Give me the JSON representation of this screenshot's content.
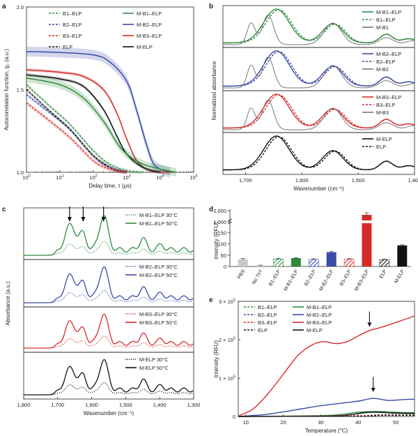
{
  "colors": {
    "green": "#2e8b3e",
    "blue": "#3a4aa8",
    "red": "#d62a2a",
    "black": "#111111",
    "grey": "#777777",
    "lightgrey": "#c8c8c8"
  },
  "chart_data": [
    {
      "panel": "a",
      "type": "line",
      "title": "",
      "xlabel": "Delay time, τ (μs)",
      "ylabel": "Autocorrelation function, g₂ (a.u.)",
      "x_scale": "log",
      "xlim": [
        1,
        100000
      ],
      "ylim": [
        1.0,
        2.0
      ],
      "x_ticks": [
        "10^0",
        "10^1",
        "10^2",
        "10^3",
        "10^4",
        "10^5"
      ],
      "y_ticks": [
        "1.0",
        "1.5",
        "2.0"
      ],
      "legend": [
        {
          "name": "B1–ELP",
          "style": "dashed",
          "color": "green"
        },
        {
          "name": "M-B1–ELP",
          "style": "solid",
          "color": "green"
        },
        {
          "name": "B2–ELP",
          "style": "dashed",
          "color": "blue"
        },
        {
          "name": "M-B2–ELP",
          "style": "solid",
          "color": "blue"
        },
        {
          "name": "B3–ELP",
          "style": "dashed",
          "color": "red"
        },
        {
          "name": "M-B3–ELP",
          "style": "solid",
          "color": "red"
        },
        {
          "name": "ELP",
          "style": "dashed",
          "color": "black"
        },
        {
          "name": "M-ELP",
          "style": "solid",
          "color": "black"
        }
      ],
      "series": [
        {
          "name": "M-B2–ELP",
          "color": "blue",
          "style": "solid",
          "band": 0.03,
          "points": [
            [
              1,
              1.73
            ],
            [
              10,
              1.725
            ],
            [
              100,
              1.71
            ],
            [
              300,
              1.67
            ],
            [
              1000,
              1.55
            ],
            [
              2000,
              1.37
            ],
            [
              4000,
              1.16
            ],
            [
              7000,
              1.04
            ],
            [
              20000,
              1.0
            ]
          ]
        },
        {
          "name": "M-B3–ELP",
          "color": "red",
          "style": "solid",
          "band": 0.01,
          "points": [
            [
              1,
              1.62
            ],
            [
              10,
              1.605
            ],
            [
              50,
              1.58
            ],
            [
              200,
              1.5
            ],
            [
              500,
              1.36
            ],
            [
              1000,
              1.2
            ],
            [
              2000,
              1.07
            ],
            [
              5000,
              1.01
            ],
            [
              20000,
              1.0
            ]
          ]
        },
        {
          "name": "M-ELP",
          "color": "black",
          "style": "solid",
          "band": 0.01,
          "points": [
            [
              1,
              1.59
            ],
            [
              10,
              1.565
            ],
            [
              50,
              1.52
            ],
            [
              200,
              1.38
            ],
            [
              500,
              1.22
            ],
            [
              1000,
              1.11
            ],
            [
              3000,
              1.03
            ],
            [
              10000,
              1.0
            ]
          ]
        },
        {
          "name": "M-B1–ELP",
          "color": "green",
          "style": "solid",
          "band": 0.025,
          "points": [
            [
              1,
              1.57
            ],
            [
              10,
              1.53
            ],
            [
              50,
              1.45
            ],
            [
              200,
              1.31
            ],
            [
              500,
              1.18
            ],
            [
              1000,
              1.11
            ],
            [
              3000,
              1.05
            ],
            [
              10000,
              1.02
            ],
            [
              30000,
              1.0
            ]
          ]
        },
        {
          "name": "B1–ELP",
          "color": "green",
          "style": "dashed",
          "band": 0.01,
          "points": [
            [
              1,
              1.53
            ],
            [
              5,
              1.4
            ],
            [
              20,
              1.29
            ],
            [
              100,
              1.13
            ],
            [
              300,
              1.05
            ],
            [
              1000,
              1.01
            ],
            [
              3000,
              1.0
            ]
          ]
        },
        {
          "name": "B2–ELP",
          "color": "blue",
          "style": "dashed",
          "band": 0.01,
          "points": [
            [
              1,
              1.47
            ],
            [
              5,
              1.36
            ],
            [
              20,
              1.26
            ],
            [
              100,
              1.1
            ],
            [
              300,
              1.03
            ],
            [
              1000,
              1.0
            ]
          ]
        },
        {
          "name": "ELP",
          "color": "black",
          "style": "dashed",
          "band": 0.01,
          "points": [
            [
              1,
              1.5
            ],
            [
              5,
              1.37
            ],
            [
              20,
              1.26
            ],
            [
              100,
              1.1
            ],
            [
              400,
              1.02
            ],
            [
              1000,
              1.0
            ]
          ]
        },
        {
          "name": "B3–ELP",
          "color": "red",
          "style": "dashed",
          "band": 0.012,
          "points": [
            [
              1,
              1.42
            ],
            [
              5,
              1.31
            ],
            [
              20,
              1.21
            ],
            [
              100,
              1.07
            ],
            [
              300,
              1.02
            ],
            [
              1000,
              1.0
            ]
          ]
        }
      ]
    },
    {
      "panel": "b",
      "type": "line",
      "title": "",
      "xlabel": "Wavenumber (cm⁻¹)",
      "ylabel": "Normalized absorbance",
      "xlim": [
        1740,
        1400
      ],
      "x_ticks": [
        "1,700",
        "1,600",
        "1,500",
        "1,400"
      ],
      "subpanels": [
        {
          "legend": [
            "M-B1–ELP",
            "B1–ELP",
            "M-B1"
          ],
          "colors": [
            "green",
            "green",
            "grey"
          ],
          "styles": [
            "solid",
            "dashed",
            "solid"
          ]
        },
        {
          "legend": [
            "M-B2–ELP",
            "B2–ELP",
            "M-B2"
          ],
          "colors": [
            "blue",
            "blue",
            "grey"
          ],
          "styles": [
            "solid",
            "dashed",
            "solid"
          ]
        },
        {
          "legend": [
            "M-B3–ELP",
            "B3–ELP",
            "M-B3"
          ],
          "colors": [
            "red",
            "red",
            "grey"
          ],
          "styles": [
            "solid",
            "dashed",
            "solid"
          ]
        },
        {
          "legend": [
            "M-ELP",
            "ELP"
          ],
          "colors": [
            "black",
            "black"
          ],
          "styles": [
            "solid",
            "dashed"
          ]
        }
      ]
    },
    {
      "panel": "c",
      "type": "line",
      "title": "",
      "xlabel": "Wavenumber (cm⁻¹)",
      "ylabel": "Absorbance (a.u.)",
      "xlim": [
        1800,
        1300
      ],
      "x_ticks": [
        "1,800",
        "1,700",
        "1,600",
        "1,500",
        "1,400",
        "1,300"
      ],
      "arrows_at": [
        1665,
        1625,
        1565
      ],
      "subpanels": [
        {
          "legend": [
            "M-B1–ELP 30°C",
            "M-B1–ELP 50°C"
          ],
          "color": "green"
        },
        {
          "legend": [
            "M-B2–ELP 30°C",
            "M-B2–ELP 50°C"
          ],
          "color": "blue"
        },
        {
          "legend": [
            "M-B3–ELP 30°C",
            "M-B3–ELP 50°C"
          ],
          "color": "red"
        },
        {
          "legend": [
            "M-ELP 30°C",
            "M-ELP 50°C"
          ],
          "color": "black"
        }
      ]
    },
    {
      "panel": "d",
      "type": "bar",
      "title": "",
      "ylabel": "Intensity (RFU)",
      "y_ticks_lower": [
        "0",
        "50",
        "100",
        "150"
      ],
      "y_ticks_upper": [
        "1,000",
        "2,000"
      ],
      "categories": [
        "PBS",
        "No ThT",
        "B1–ELP",
        "M-B1–ELP",
        "B2–ELP",
        "M-B2–ELP",
        "B3–ELP",
        "M-B3–ELP",
        "ELP",
        "M-ELP"
      ],
      "values": [
        32,
        5,
        33,
        37,
        31,
        63,
        32,
        1300,
        30,
        93
      ],
      "errors": [
        3,
        1,
        3,
        2,
        3,
        3,
        3,
        150,
        2,
        3
      ],
      "bar_colors": [
        "lightgrey",
        "lightgrey",
        "green",
        "green",
        "blue",
        "blue",
        "red",
        "red",
        "black",
        "black"
      ],
      "hatched": [
        false,
        false,
        true,
        false,
        true,
        false,
        true,
        false,
        true,
        false
      ]
    },
    {
      "panel": "e",
      "type": "line",
      "title": "",
      "xlabel": "Temperature (°C)",
      "ylabel": "Intensity (RFU)",
      "xlim": [
        8,
        55
      ],
      "ylim": [
        0,
        300000
      ],
      "x_ticks": [
        "10",
        "20",
        "30",
        "40",
        "50"
      ],
      "y_ticks": [
        "0",
        "1 × 10^5",
        "2 × 10^5",
        "3 × 10^5"
      ],
      "arrows_at": [
        [
          43,
          230000
        ],
        [
          44,
          60000
        ]
      ],
      "legend": [
        {
          "name": "B1–ELP",
          "style": "dashed",
          "color": "green"
        },
        {
          "name": "M-B1–ELP",
          "style": "solid",
          "color": "green"
        },
        {
          "name": "B2–ELP",
          "style": "dashed",
          "color": "blue"
        },
        {
          "name": "M-B2–ELP",
          "style": "solid",
          "color": "blue"
        },
        {
          "name": "B3–ELP",
          "style": "dashed",
          "color": "red"
        },
        {
          "name": "M-B3–ELP",
          "style": "solid",
          "color": "red"
        },
        {
          "name": "ELP",
          "style": "dashed",
          "color": "black"
        },
        {
          "name": "M-ELP",
          "style": "solid",
          "color": "black"
        }
      ],
      "series": [
        {
          "name": "M-B3–ELP",
          "color": "red",
          "style": "solid",
          "points": [
            [
              8,
              1000
            ],
            [
              12,
              20000
            ],
            [
              16,
              60000
            ],
            [
              20,
              110000
            ],
            [
              24,
              160000
            ],
            [
              28,
              188000
            ],
            [
              31,
              195000
            ],
            [
              34,
              190000
            ],
            [
              37,
              195000
            ],
            [
              40,
              210000
            ],
            [
              43,
              224000
            ],
            [
              46,
              232000
            ],
            [
              50,
              245000
            ],
            [
              55,
              262000
            ]
          ]
        },
        {
          "name": "M-B2–ELP",
          "color": "blue",
          "style": "solid",
          "points": [
            [
              8,
              0
            ],
            [
              15,
              5000
            ],
            [
              20,
              12000
            ],
            [
              25,
              20000
            ],
            [
              30,
              28000
            ],
            [
              35,
              34000
            ],
            [
              40,
              40000
            ],
            [
              44,
              47000
            ],
            [
              48,
              42000
            ],
            [
              52,
              44000
            ],
            [
              55,
              45000
            ]
          ]
        },
        {
          "name": "M-B1–ELP",
          "color": "green",
          "style": "solid",
          "points": [
            [
              8,
              0
            ],
            [
              30,
              2000
            ],
            [
              36,
              6000
            ],
            [
              40,
              11000
            ],
            [
              44,
              13000
            ],
            [
              48,
              12000
            ],
            [
              52,
              10000
            ],
            [
              55,
              10000
            ]
          ]
        },
        {
          "name": "M-ELP",
          "color": "black",
          "style": "solid",
          "points": [
            [
              8,
              0
            ],
            [
              32,
              1000
            ],
            [
              38,
              5000
            ],
            [
              42,
              10000
            ],
            [
              45,
              11000
            ],
            [
              49,
              9000
            ],
            [
              55,
              8000
            ]
          ]
        },
        {
          "name": "B1–ELP",
          "color": "green",
          "style": "dashed",
          "points": [
            [
              8,
              0
            ],
            [
              38,
              1000
            ],
            [
              44,
              4000
            ],
            [
              50,
              5000
            ],
            [
              55,
              5000
            ]
          ]
        },
        {
          "name": "B2–ELP",
          "color": "blue",
          "style": "dashed",
          "points": [
            [
              8,
              0
            ],
            [
              40,
              1000
            ],
            [
              46,
              3000
            ],
            [
              55,
              3000
            ]
          ]
        },
        {
          "name": "B3–ELP",
          "color": "red",
          "style": "dashed",
          "points": [
            [
              8,
              0
            ],
            [
              40,
              2000
            ],
            [
              46,
              4000
            ],
            [
              55,
              4000
            ]
          ]
        },
        {
          "name": "ELP",
          "color": "black",
          "style": "dashed",
          "points": [
            [
              8,
              0
            ],
            [
              40,
              1000
            ],
            [
              46,
              3000
            ],
            [
              55,
              3000
            ]
          ]
        }
      ]
    }
  ]
}
